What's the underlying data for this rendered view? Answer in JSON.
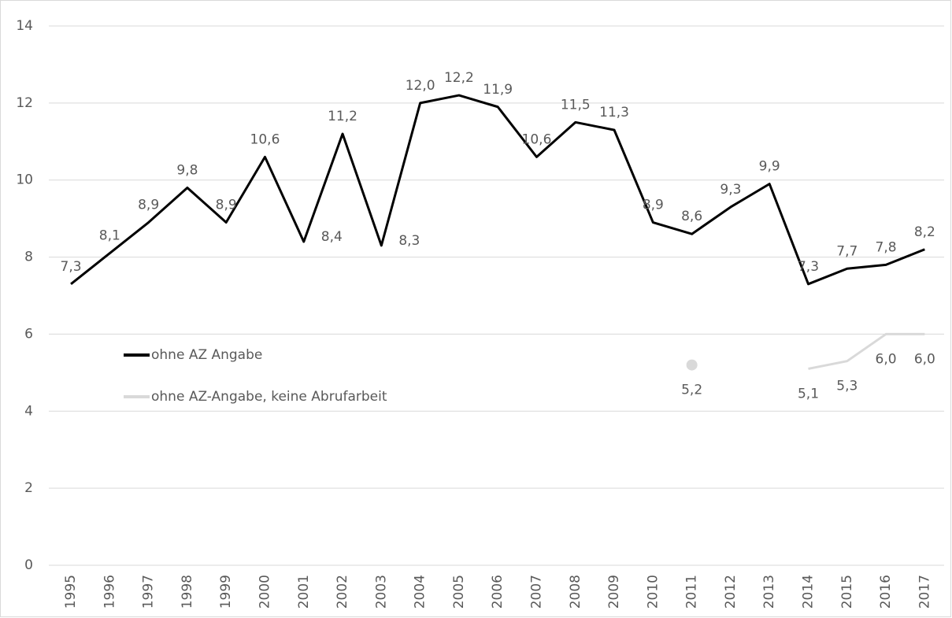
{
  "chart_data": {
    "type": "line",
    "categories": [
      "1995",
      "1996",
      "1997",
      "1998",
      "1999",
      "2000",
      "2001",
      "2002",
      "2003",
      "2004",
      "2005",
      "2006",
      "2007",
      "2008",
      "2009",
      "2010",
      "2011",
      "2012",
      "2013",
      "2014",
      "2015",
      "2016",
      "2017"
    ],
    "series": [
      {
        "name": "ohne AZ Angabe",
        "color": "#000000",
        "values": [
          7.3,
          8.1,
          8.9,
          9.8,
          8.9,
          10.6,
          8.4,
          11.2,
          8.3,
          12.0,
          12.2,
          11.9,
          10.6,
          11.5,
          11.3,
          8.9,
          8.6,
          9.3,
          9.9,
          7.3,
          7.7,
          7.8,
          8.2
        ],
        "value_labels": [
          "7,3",
          "8,1",
          "8,9",
          "9,8",
          "8,9",
          "10,6",
          "8,4",
          "11,2",
          "8,3",
          "12,0",
          "12,2",
          "11,9",
          "10,6",
          "11,5",
          "11,3",
          "8,9",
          "8,6",
          "9,3",
          "9,9",
          "7,3",
          "7,7",
          "7,8",
          "8,2"
        ]
      },
      {
        "name": "ohne AZ-Angabe, keine Abrufarbeit",
        "color": "#d9d9d9",
        "values": [
          null,
          null,
          null,
          null,
          null,
          null,
          null,
          null,
          null,
          null,
          null,
          null,
          null,
          null,
          null,
          null,
          5.2,
          null,
          null,
          5.1,
          5.3,
          6.0,
          6.0
        ],
        "value_labels": [
          null,
          null,
          null,
          null,
          null,
          null,
          null,
          null,
          null,
          null,
          null,
          null,
          null,
          null,
          null,
          null,
          "5,2",
          null,
          null,
          "5,1",
          "5,3",
          "6,0",
          "6,0"
        ]
      }
    ],
    "ylim": [
      0,
      14
    ],
    "yticks": [
      0,
      2,
      4,
      6,
      8,
      10,
      12,
      14
    ],
    "grid": true
  }
}
